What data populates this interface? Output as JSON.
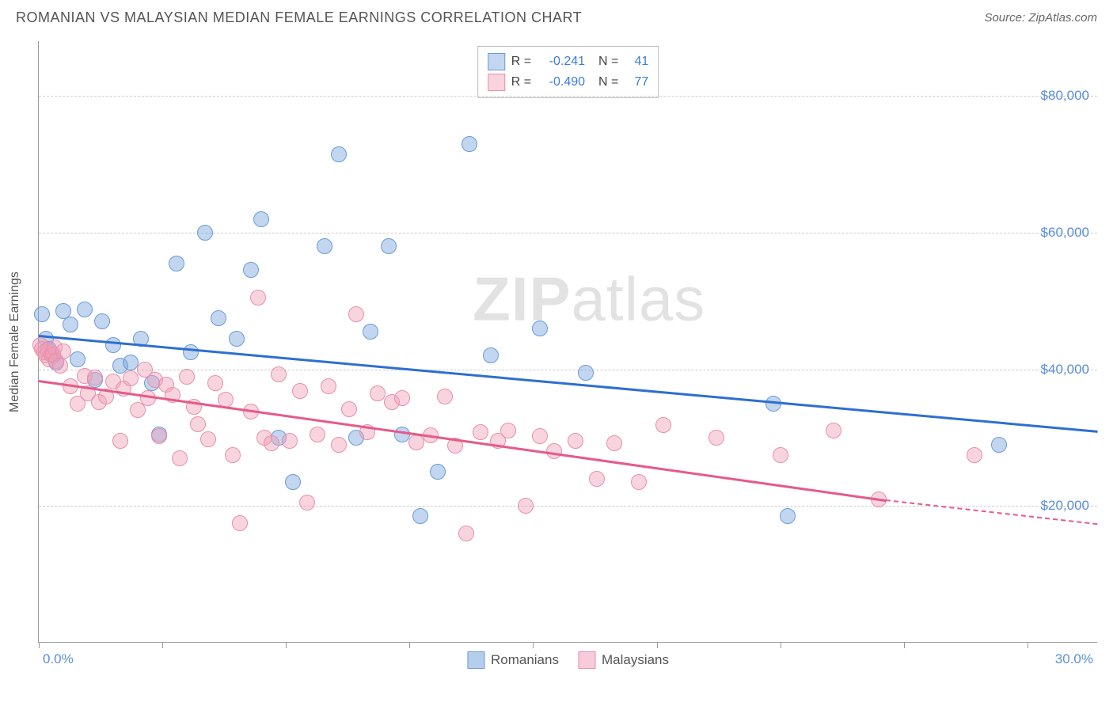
{
  "header": {
    "title": "ROMANIAN VS MALAYSIAN MEDIAN FEMALE EARNINGS CORRELATION CHART",
    "source": "Source: ZipAtlas.com"
  },
  "watermark": {
    "part1": "ZIP",
    "part2": "atlas"
  },
  "chart": {
    "type": "scatter",
    "background_color": "#ffffff",
    "grid_color": "#cccccc",
    "axis_color": "#999999",
    "ylabel": "Median Female Earnings",
    "label_fontsize": 16,
    "label_color": "#555555",
    "xlim": [
      0,
      30
    ],
    "ylim": [
      0,
      88000
    ],
    "yticks": [
      20000,
      40000,
      60000,
      80000
    ],
    "ytick_labels": [
      "$20,000",
      "$40,000",
      "$60,000",
      "$80,000"
    ],
    "ytick_color": "#5a8fd6",
    "ytick_fontsize": 17,
    "xtick_positions": [
      0,
      3.5,
      7,
      10.5,
      14,
      17.5,
      21,
      24.5,
      28
    ],
    "xaxis_start_label": "0.0%",
    "xaxis_end_label": "30.0%",
    "point_radius": 10,
    "series": [
      {
        "name": "Romanians",
        "fill_color": "rgba(120,165,220,0.45)",
        "stroke_color": "#6a9bd8",
        "trend_color": "#2e6fd0",
        "R": "-0.241",
        "N": "41",
        "trend": {
          "x1": 0,
          "y1": 45000,
          "x2": 30,
          "y2": 31000
        },
        "points": [
          [
            0.1,
            48000
          ],
          [
            0.2,
            44500
          ],
          [
            0.3,
            43000
          ],
          [
            0.4,
            42000
          ],
          [
            0.5,
            41000
          ],
          [
            0.7,
            48500
          ],
          [
            0.9,
            46500
          ],
          [
            1.1,
            41500
          ],
          [
            1.3,
            48800
          ],
          [
            1.6,
            38500
          ],
          [
            1.8,
            47000
          ],
          [
            2.1,
            43500
          ],
          [
            2.3,
            40500
          ],
          [
            2.6,
            41000
          ],
          [
            2.9,
            44500
          ],
          [
            3.2,
            38000
          ],
          [
            3.4,
            30500
          ],
          [
            3.9,
            55500
          ],
          [
            4.3,
            42500
          ],
          [
            4.7,
            60000
          ],
          [
            5.1,
            47500
          ],
          [
            5.6,
            44500
          ],
          [
            6.0,
            54500
          ],
          [
            6.3,
            62000
          ],
          [
            6.8,
            30000
          ],
          [
            7.2,
            23500
          ],
          [
            8.1,
            58000
          ],
          [
            8.5,
            71500
          ],
          [
            9.0,
            30000
          ],
          [
            9.4,
            45500
          ],
          [
            9.9,
            58000
          ],
          [
            10.3,
            30500
          ],
          [
            10.8,
            18500
          ],
          [
            11.3,
            25000
          ],
          [
            12.2,
            73000
          ],
          [
            12.8,
            42000
          ],
          [
            14.2,
            46000
          ],
          [
            15.5,
            39500
          ],
          [
            20.8,
            35000
          ],
          [
            21.2,
            18500
          ],
          [
            27.2,
            29000
          ]
        ]
      },
      {
        "name": "Malaysians",
        "fill_color": "rgba(240,160,185,0.45)",
        "stroke_color": "#e98fab",
        "trend_color": "#e65a87",
        "R": "-0.490",
        "N": "77",
        "trend": {
          "x1": 0,
          "y1": 38500,
          "x2": 24,
          "y2": 21000
        },
        "trend_dash": {
          "x1": 24,
          "y1": 21000,
          "x2": 30,
          "y2": 17500
        },
        "points": [
          [
            0.05,
            43500
          ],
          [
            0.1,
            43000
          ],
          [
            0.15,
            42500
          ],
          [
            0.2,
            42000
          ],
          [
            0.25,
            42800
          ],
          [
            0.3,
            41500
          ],
          [
            0.35,
            42200
          ],
          [
            0.4,
            42300
          ],
          [
            0.45,
            43200
          ],
          [
            0.5,
            41200
          ],
          [
            0.6,
            40500
          ],
          [
            0.7,
            42600
          ],
          [
            0.9,
            37500
          ],
          [
            1.1,
            35000
          ],
          [
            1.3,
            39000
          ],
          [
            1.4,
            36500
          ],
          [
            1.6,
            38800
          ],
          [
            1.7,
            35200
          ],
          [
            1.9,
            36000
          ],
          [
            2.1,
            38200
          ],
          [
            2.3,
            29500
          ],
          [
            2.4,
            37200
          ],
          [
            2.6,
            38700
          ],
          [
            2.8,
            34000
          ],
          [
            3.0,
            40000
          ],
          [
            3.1,
            35800
          ],
          [
            3.3,
            38500
          ],
          [
            3.4,
            30200
          ],
          [
            3.6,
            37800
          ],
          [
            3.8,
            36200
          ],
          [
            4.0,
            27000
          ],
          [
            4.2,
            38900
          ],
          [
            4.4,
            34500
          ],
          [
            4.5,
            32000
          ],
          [
            4.8,
            29800
          ],
          [
            5.0,
            38000
          ],
          [
            5.3,
            35500
          ],
          [
            5.5,
            27500
          ],
          [
            5.7,
            17500
          ],
          [
            6.0,
            33800
          ],
          [
            6.2,
            50500
          ],
          [
            6.4,
            30000
          ],
          [
            6.6,
            29200
          ],
          [
            6.8,
            39200
          ],
          [
            7.1,
            29500
          ],
          [
            7.4,
            36800
          ],
          [
            7.6,
            20500
          ],
          [
            7.9,
            30500
          ],
          [
            8.2,
            37500
          ],
          [
            8.5,
            29000
          ],
          [
            8.8,
            34200
          ],
          [
            9.0,
            48000
          ],
          [
            9.3,
            30800
          ],
          [
            9.6,
            36500
          ],
          [
            10.0,
            35200
          ],
          [
            10.3,
            35800
          ],
          [
            10.7,
            29300
          ],
          [
            11.1,
            30300
          ],
          [
            11.5,
            36000
          ],
          [
            11.8,
            28800
          ],
          [
            12.1,
            16000
          ],
          [
            12.5,
            30800
          ],
          [
            13.0,
            29500
          ],
          [
            13.3,
            31000
          ],
          [
            13.8,
            20000
          ],
          [
            14.2,
            30200
          ],
          [
            14.6,
            28000
          ],
          [
            15.2,
            29500
          ],
          [
            15.8,
            24000
          ],
          [
            16.3,
            29200
          ],
          [
            17.0,
            23500
          ],
          [
            17.7,
            31800
          ],
          [
            19.2,
            30000
          ],
          [
            21.0,
            27500
          ],
          [
            22.5,
            31000
          ],
          [
            23.8,
            21000
          ],
          [
            26.5,
            27500
          ]
        ]
      }
    ],
    "legend_top": {
      "R_label": "R =",
      "N_label": "N ="
    },
    "legend_bottom": [
      {
        "label": "Romanians",
        "fill": "rgba(120,165,220,0.55)",
        "stroke": "#6a9bd8"
      },
      {
        "label": "Malaysians",
        "fill": "rgba(240,160,185,0.55)",
        "stroke": "#e98fab"
      }
    ]
  }
}
